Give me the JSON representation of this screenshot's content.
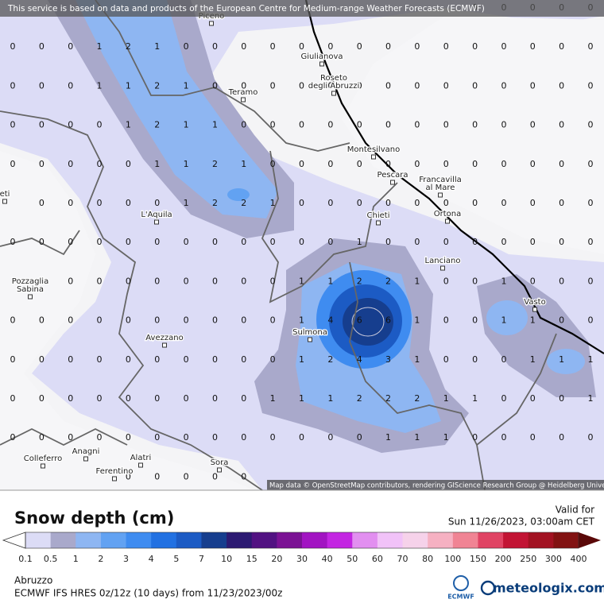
{
  "header": {
    "disclaimer": "This service is based on data and products of the European Centre for Medium-range Weather Forecasts (ECMWF)",
    "attribution": "Map data © OpenStreetMap contributors, rendering GIScience Research Group @ Heidelberg University"
  },
  "places": [
    {
      "lines": [
        "Piceno"
      ]
    },
    {
      "lines": [
        "Giulianova"
      ]
    },
    {
      "lines": [
        "Roseto",
        "degli Abruzzi"
      ]
    },
    {
      "lines": [
        "Teramo"
      ]
    },
    {
      "lines": [
        "Montesilvano"
      ]
    },
    {
      "lines": [
        "Pescara"
      ]
    },
    {
      "lines": [
        "Francavilla",
        "al Mare"
      ]
    },
    {
      "lines": [
        "Chieti"
      ]
    },
    {
      "lines": [
        "Ortona"
      ]
    },
    {
      "lines": [
        "L'Aquila"
      ]
    },
    {
      "lines": [
        "Lanciano"
      ]
    },
    {
      "lines": [
        "Pozzaglia",
        "Sabina"
      ]
    },
    {
      "lines": [
        "Vasto"
      ]
    },
    {
      "lines": [
        "Sulmona"
      ]
    },
    {
      "lines": [
        "Avezzano"
      ]
    },
    {
      "lines": [
        "Colleferro"
      ]
    },
    {
      "lines": [
        "Anagni"
      ]
    },
    {
      "lines": [
        "Alatri"
      ]
    },
    {
      "lines": [
        "Ferentino"
      ]
    },
    {
      "lines": [
        "Sora"
      ]
    },
    {
      "lines": [
        "eti"
      ]
    }
  ],
  "grid": {
    "rows": [
      [
        null,
        null,
        null,
        null,
        null,
        null,
        null,
        null,
        null,
        null,
        null,
        null,
        null,
        null,
        null,
        null,
        0,
        0,
        0,
        0,
        0
      ],
      [
        0,
        0,
        0,
        1,
        2,
        1,
        0,
        0,
        0,
        0,
        0,
        0,
        0,
        0,
        0,
        0,
        0,
        0,
        0,
        0,
        0
      ],
      [
        0,
        0,
        0,
        1,
        1,
        2,
        1,
        0,
        0,
        0,
        0,
        0,
        0,
        0,
        0,
        0,
        0,
        0,
        0,
        0,
        0
      ],
      [
        0,
        0,
        0,
        0,
        1,
        2,
        1,
        1,
        0,
        0,
        0,
        0,
        0,
        0,
        0,
        0,
        0,
        0,
        0,
        0,
        0
      ],
      [
        0,
        0,
        0,
        0,
        0,
        1,
        1,
        2,
        1,
        0,
        0,
        0,
        0,
        0,
        0,
        0,
        0,
        0,
        0,
        0,
        0
      ],
      [
        null,
        0,
        0,
        0,
        0,
        0,
        1,
        2,
        2,
        1,
        0,
        0,
        0,
        0,
        0,
        0,
        0,
        0,
        0,
        0,
        0
      ],
      [
        0,
        0,
        0,
        0,
        0,
        0,
        0,
        0,
        0,
        0,
        0,
        0,
        1,
        0,
        0,
        0,
        0,
        0,
        0,
        0,
        0
      ],
      [
        null,
        0,
        0,
        0,
        0,
        0,
        0,
        0,
        0,
        0,
        1,
        1,
        2,
        2,
        1,
        0,
        0,
        1,
        0,
        0,
        0
      ],
      [
        0,
        0,
        0,
        0,
        0,
        0,
        0,
        0,
        0,
        0,
        1,
        4,
        6,
        6,
        1,
        0,
        0,
        1,
        1,
        0,
        0
      ],
      [
        0,
        0,
        0,
        0,
        0,
        0,
        0,
        0,
        0,
        0,
        1,
        2,
        4,
        3,
        1,
        0,
        0,
        0,
        1,
        1,
        1
      ],
      [
        0,
        0,
        0,
        0,
        0,
        0,
        0,
        0,
        0,
        1,
        1,
        1,
        2,
        2,
        2,
        1,
        1,
        0,
        0,
        0,
        1
      ],
      [
        0,
        0,
        0,
        0,
        0,
        0,
        0,
        0,
        0,
        0,
        0,
        0,
        0,
        1,
        1,
        1,
        0,
        0,
        0,
        0,
        0
      ],
      [
        null,
        null,
        null,
        null,
        0,
        0,
        0,
        0,
        0,
        null,
        null,
        null,
        null,
        null,
        null,
        null,
        null,
        null,
        null,
        null,
        null
      ]
    ]
  },
  "legend": {
    "title": "Snow depth (cm)",
    "valid_label": "Valid for",
    "valid_time": "Sun 11/26/2023, 03:00am CET",
    "ticks": [
      0.1,
      0.5,
      1,
      2,
      3,
      4,
      5,
      7,
      10,
      15,
      20,
      30,
      40,
      50,
      60,
      70,
      80,
      100,
      150,
      200,
      250,
      300,
      400
    ],
    "colors": [
      "#dcdcf6",
      "#a9a9cb",
      "#8eb6f2",
      "#62a2f2",
      "#3f8cf0",
      "#2271e2",
      "#1c5bc4",
      "#163e8e",
      "#2c1a72",
      "#521282",
      "#7b1294",
      "#a214c2",
      "#c326e2",
      "#e28ff0",
      "#f1c2f8",
      "#f6d2ea",
      "#f6b1c2",
      "#f08494",
      "#e04464",
      "#c21434",
      "#a21222",
      "#821212"
    ],
    "under_color": "#ffffff",
    "over_color": "#5a0808"
  },
  "footer": {
    "region": "Abruzzo",
    "model": "ECMWF IFS HRES 0z/12z (10 days) from 11/23/2023/00z",
    "agency": "ECMWF",
    "brand": "meteologix.com"
  }
}
